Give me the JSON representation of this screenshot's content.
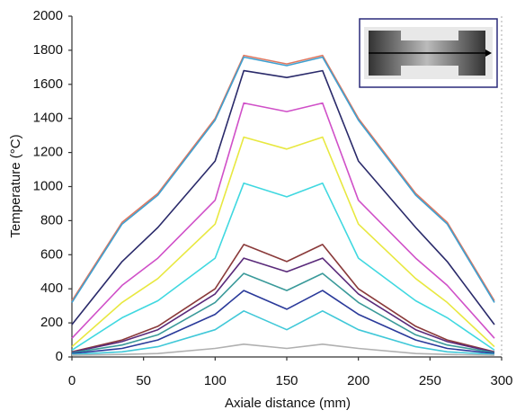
{
  "chart_data": {
    "type": "line",
    "x_label": "Axiale distance (mm)",
    "y_label": "Temperature (°C)",
    "x": [
      0,
      35,
      60,
      100,
      120,
      150,
      175,
      200,
      240,
      262,
      295
    ],
    "xlim": [
      0,
      300
    ],
    "xticks": [
      0,
      50,
      100,
      150,
      200,
      250,
      300
    ],
    "ylim": [
      0,
      2000
    ],
    "yticks": [
      0,
      200,
      400,
      600,
      800,
      1000,
      1200,
      1400,
      1600,
      1800,
      2000
    ],
    "grid": false,
    "series": [
      {
        "color": "#e07860",
        "values": [
          330,
          790,
          960,
          1400,
          1770,
          1720,
          1770,
          1400,
          960,
          790,
          330
        ]
      },
      {
        "color": "#3fa0d0",
        "values": [
          320,
          780,
          950,
          1390,
          1760,
          1710,
          1760,
          1390,
          950,
          780,
          320
        ]
      },
      {
        "color": "#2a2a6a",
        "values": [
          190,
          560,
          760,
          1150,
          1680,
          1640,
          1680,
          1150,
          760,
          560,
          190
        ]
      },
      {
        "color": "#d050c8",
        "values": [
          110,
          420,
          580,
          920,
          1490,
          1440,
          1490,
          920,
          580,
          420,
          110
        ]
      },
      {
        "color": "#e8e840",
        "values": [
          60,
          320,
          460,
          780,
          1290,
          1220,
          1290,
          780,
          460,
          320,
          60
        ]
      },
      {
        "color": "#40d8e0",
        "values": [
          40,
          230,
          330,
          580,
          1020,
          940,
          1020,
          580,
          330,
          230,
          40
        ]
      },
      {
        "color": "#8a3a3a",
        "values": [
          30,
          100,
          180,
          400,
          660,
          560,
          660,
          400,
          180,
          100,
          30
        ]
      },
      {
        "color": "#5a2a7a",
        "values": [
          28,
          90,
          160,
          370,
          580,
          500,
          580,
          370,
          160,
          90,
          28
        ]
      },
      {
        "color": "#3a9a9a",
        "values": [
          25,
          70,
          130,
          320,
          490,
          390,
          490,
          320,
          130,
          70,
          25
        ]
      },
      {
        "color": "#2a3a9a",
        "values": [
          20,
          50,
          100,
          250,
          390,
          280,
          390,
          250,
          100,
          50,
          20
        ]
      },
      {
        "color": "#40c8d8",
        "values": [
          15,
          30,
          60,
          160,
          270,
          160,
          270,
          160,
          60,
          30,
          15
        ]
      },
      {
        "color": "#b0b0b0",
        "values": [
          10,
          15,
          20,
          50,
          75,
          50,
          75,
          50,
          20,
          15,
          10
        ]
      }
    ]
  }
}
